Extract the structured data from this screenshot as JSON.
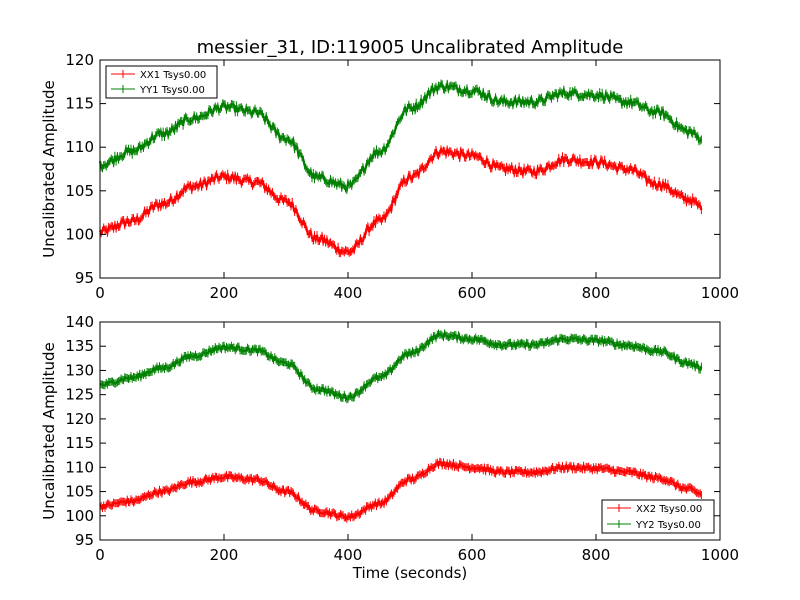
{
  "title": "messier_31, ID:119005 Uncalibrated Amplitude",
  "xlabel": "Time (seconds)",
  "colors": {
    "XX": "#ff0000",
    "YY": "#008000"
  },
  "chart_data": [
    {
      "type": "line",
      "title": "messier_31, ID:119005 Uncalibrated Amplitude",
      "xlabel": "",
      "ylabel": "Uncalibrated Amplitude",
      "xlim": [
        0,
        1000
      ],
      "ylim": [
        95,
        120
      ],
      "xticks": [
        0,
        200,
        400,
        600,
        800,
        1000
      ],
      "yticks": [
        95,
        100,
        105,
        110,
        115,
        120
      ],
      "legend_placement": "upper-left",
      "grid": false,
      "x": [
        0,
        50,
        100,
        150,
        200,
        250,
        300,
        350,
        400,
        450,
        500,
        550,
        600,
        650,
        700,
        750,
        800,
        850,
        900,
        950,
        970
      ],
      "series": [
        {
          "name": "XX1 Tsys0.00",
          "color": "#ff0000",
          "values": [
            100.3,
            101.5,
            103.5,
            105.5,
            106.6,
            106.0,
            103.8,
            99.5,
            98.0,
            101.5,
            106.5,
            109.5,
            109.0,
            107.5,
            107.2,
            108.6,
            108.3,
            107.5,
            105.8,
            104.0,
            103.2
          ]
        },
        {
          "name": "YY1 Tsys0.00",
          "color": "#008000",
          "values": [
            108.0,
            109.5,
            111.5,
            113.3,
            114.6,
            114.0,
            111.0,
            106.5,
            105.5,
            109.5,
            114.5,
            117.0,
            116.5,
            115.2,
            115.2,
            116.2,
            116.0,
            115.2,
            114.0,
            111.8,
            111.0
          ]
        }
      ]
    },
    {
      "type": "line",
      "title": "",
      "xlabel": "Time (seconds)",
      "ylabel": "Uncalibrated Amplitude",
      "xlim": [
        0,
        1000
      ],
      "ylim": [
        95,
        140
      ],
      "xticks": [
        0,
        200,
        400,
        600,
        800,
        1000
      ],
      "yticks": [
        95,
        100,
        105,
        110,
        115,
        120,
        125,
        130,
        135,
        140
      ],
      "legend_placement": "lower-right",
      "grid": false,
      "x": [
        0,
        50,
        100,
        150,
        200,
        250,
        300,
        350,
        400,
        450,
        500,
        550,
        600,
        650,
        700,
        750,
        800,
        850,
        900,
        950,
        970
      ],
      "series": [
        {
          "name": "XX2 Tsys0.00",
          "color": "#ff0000",
          "values": [
            102.0,
            103.0,
            105.0,
            107.0,
            108.0,
            107.5,
            105.0,
            101.0,
            99.8,
            102.5,
            107.5,
            110.8,
            110.0,
            109.0,
            109.0,
            110.0,
            109.8,
            109.0,
            107.8,
            105.5,
            104.5
          ]
        },
        {
          "name": "YY2 Tsys0.00",
          "color": "#008000",
          "values": [
            127.0,
            128.5,
            130.5,
            133.0,
            134.8,
            134.2,
            131.5,
            126.2,
            124.5,
            128.5,
            133.5,
            137.3,
            136.5,
            135.3,
            135.3,
            136.5,
            136.2,
            135.2,
            134.0,
            131.5,
            130.5
          ]
        }
      ]
    }
  ]
}
